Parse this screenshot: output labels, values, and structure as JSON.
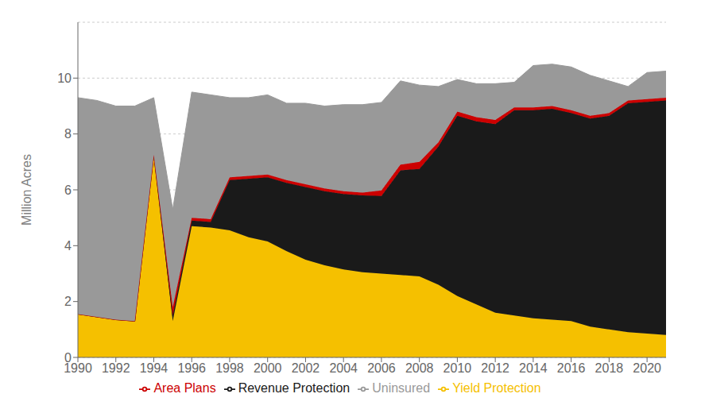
{
  "chart_data": {
    "type": "area",
    "stacked": true,
    "ylabel": "Million Acres",
    "x": [
      1990,
      1991,
      1992,
      1993,
      1994,
      1995,
      1996,
      1997,
      1998,
      1999,
      2000,
      2001,
      2002,
      2003,
      2004,
      2005,
      2006,
      2007,
      2008,
      2009,
      2010,
      2011,
      2012,
      2013,
      2014,
      2015,
      2016,
      2017,
      2018,
      2019,
      2020,
      2021
    ],
    "xlim": [
      1990,
      2021
    ],
    "xticks": [
      1990,
      1992,
      1994,
      1996,
      1998,
      2000,
      2002,
      2004,
      2006,
      2008,
      2010,
      2012,
      2014,
      2016,
      2018,
      2020
    ],
    "ylim": [
      0,
      12
    ],
    "yticks": [
      0,
      2,
      4,
      6,
      8,
      10
    ],
    "grid": "y",
    "legend": "bottom",
    "series": [
      {
        "name": "Yield Protection",
        "color": "#F5C000",
        "values": [
          1.55,
          1.45,
          1.35,
          1.3,
          7.25,
          1.3,
          4.7,
          4.65,
          4.55,
          4.3,
          4.15,
          3.8,
          3.5,
          3.3,
          3.15,
          3.05,
          3.0,
          2.95,
          2.9,
          2.6,
          2.2,
          1.9,
          1.6,
          1.5,
          1.4,
          1.35,
          1.3,
          1.1,
          1.0,
          0.9,
          0.85,
          0.8
        ]
      },
      {
        "name": "Revenue Protection",
        "color": "#1a1a1a",
        "values": [
          0.0,
          0.0,
          0.0,
          0.0,
          0.0,
          0.2,
          0.2,
          0.2,
          1.8,
          2.1,
          2.3,
          2.45,
          2.6,
          2.65,
          2.7,
          2.75,
          2.78,
          3.75,
          3.85,
          4.95,
          6.45,
          6.55,
          6.75,
          7.35,
          7.45,
          7.55,
          7.45,
          7.45,
          7.65,
          8.2,
          8.3,
          8.4
        ]
      },
      {
        "name": "Area Plans",
        "color": "#cc0000",
        "values": [
          0.0,
          0.0,
          0.0,
          0.0,
          0.0,
          0.3,
          0.1,
          0.1,
          0.1,
          0.1,
          0.1,
          0.1,
          0.1,
          0.1,
          0.1,
          0.1,
          0.2,
          0.2,
          0.25,
          0.15,
          0.15,
          0.15,
          0.15,
          0.1,
          0.1,
          0.1,
          0.1,
          0.1,
          0.1,
          0.1,
          0.1,
          0.1
        ]
      },
      {
        "name": "Uninsured",
        "color": "#999999",
        "values": [
          7.75,
          7.75,
          7.65,
          7.7,
          2.05,
          3.5,
          4.5,
          4.45,
          2.85,
          2.8,
          2.85,
          2.75,
          2.9,
          2.95,
          3.1,
          3.15,
          3.15,
          3.0,
          2.75,
          2.0,
          1.15,
          1.2,
          1.3,
          0.9,
          1.5,
          1.5,
          1.55,
          1.45,
          1.15,
          0.5,
          0.95,
          0.95
        ]
      }
    ]
  }
}
